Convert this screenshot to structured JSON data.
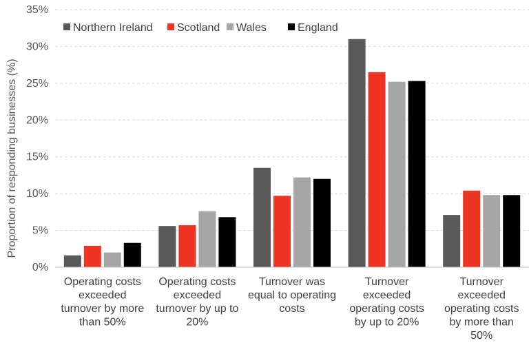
{
  "chart_data": {
    "type": "bar",
    "ylabel": "Proportion of responding businesses (%)",
    "ylim": [
      0,
      35
    ],
    "yticks": [
      0,
      5,
      10,
      15,
      20,
      25,
      30,
      35
    ],
    "ytick_labels": [
      "0%",
      "5%",
      "10%",
      "15%",
      "20%",
      "25%",
      "30%",
      "35%"
    ],
    "grid": true,
    "legend_position": "top",
    "categories": [
      [
        "Operating costs",
        "exceeded",
        "turnover by more",
        "than 50%"
      ],
      [
        "Operating costs",
        "exceeded",
        "turnover by up to",
        "20%"
      ],
      [
        "Turnover was",
        "equal to operating",
        "costs"
      ],
      [
        "Turnover",
        "exceeded",
        "operating costs",
        "by up to 20%"
      ],
      [
        "Turnover",
        "exceeded",
        "operating costs",
        "by more than",
        "50%"
      ]
    ],
    "series": [
      {
        "name": "Northern Ireland",
        "color": "#595959",
        "values": [
          1.6,
          5.6,
          13.5,
          31.0,
          7.1
        ]
      },
      {
        "name": "Scotland",
        "color": "#ee3524",
        "values": [
          2.9,
          5.7,
          9.7,
          26.5,
          10.4
        ]
      },
      {
        "name": "Wales",
        "color": "#a6a6a6",
        "values": [
          2.0,
          7.6,
          12.2,
          25.2,
          9.8
        ]
      },
      {
        "name": "England",
        "color": "#000000",
        "values": [
          3.3,
          6.8,
          12.0,
          25.3,
          9.8
        ]
      }
    ]
  }
}
